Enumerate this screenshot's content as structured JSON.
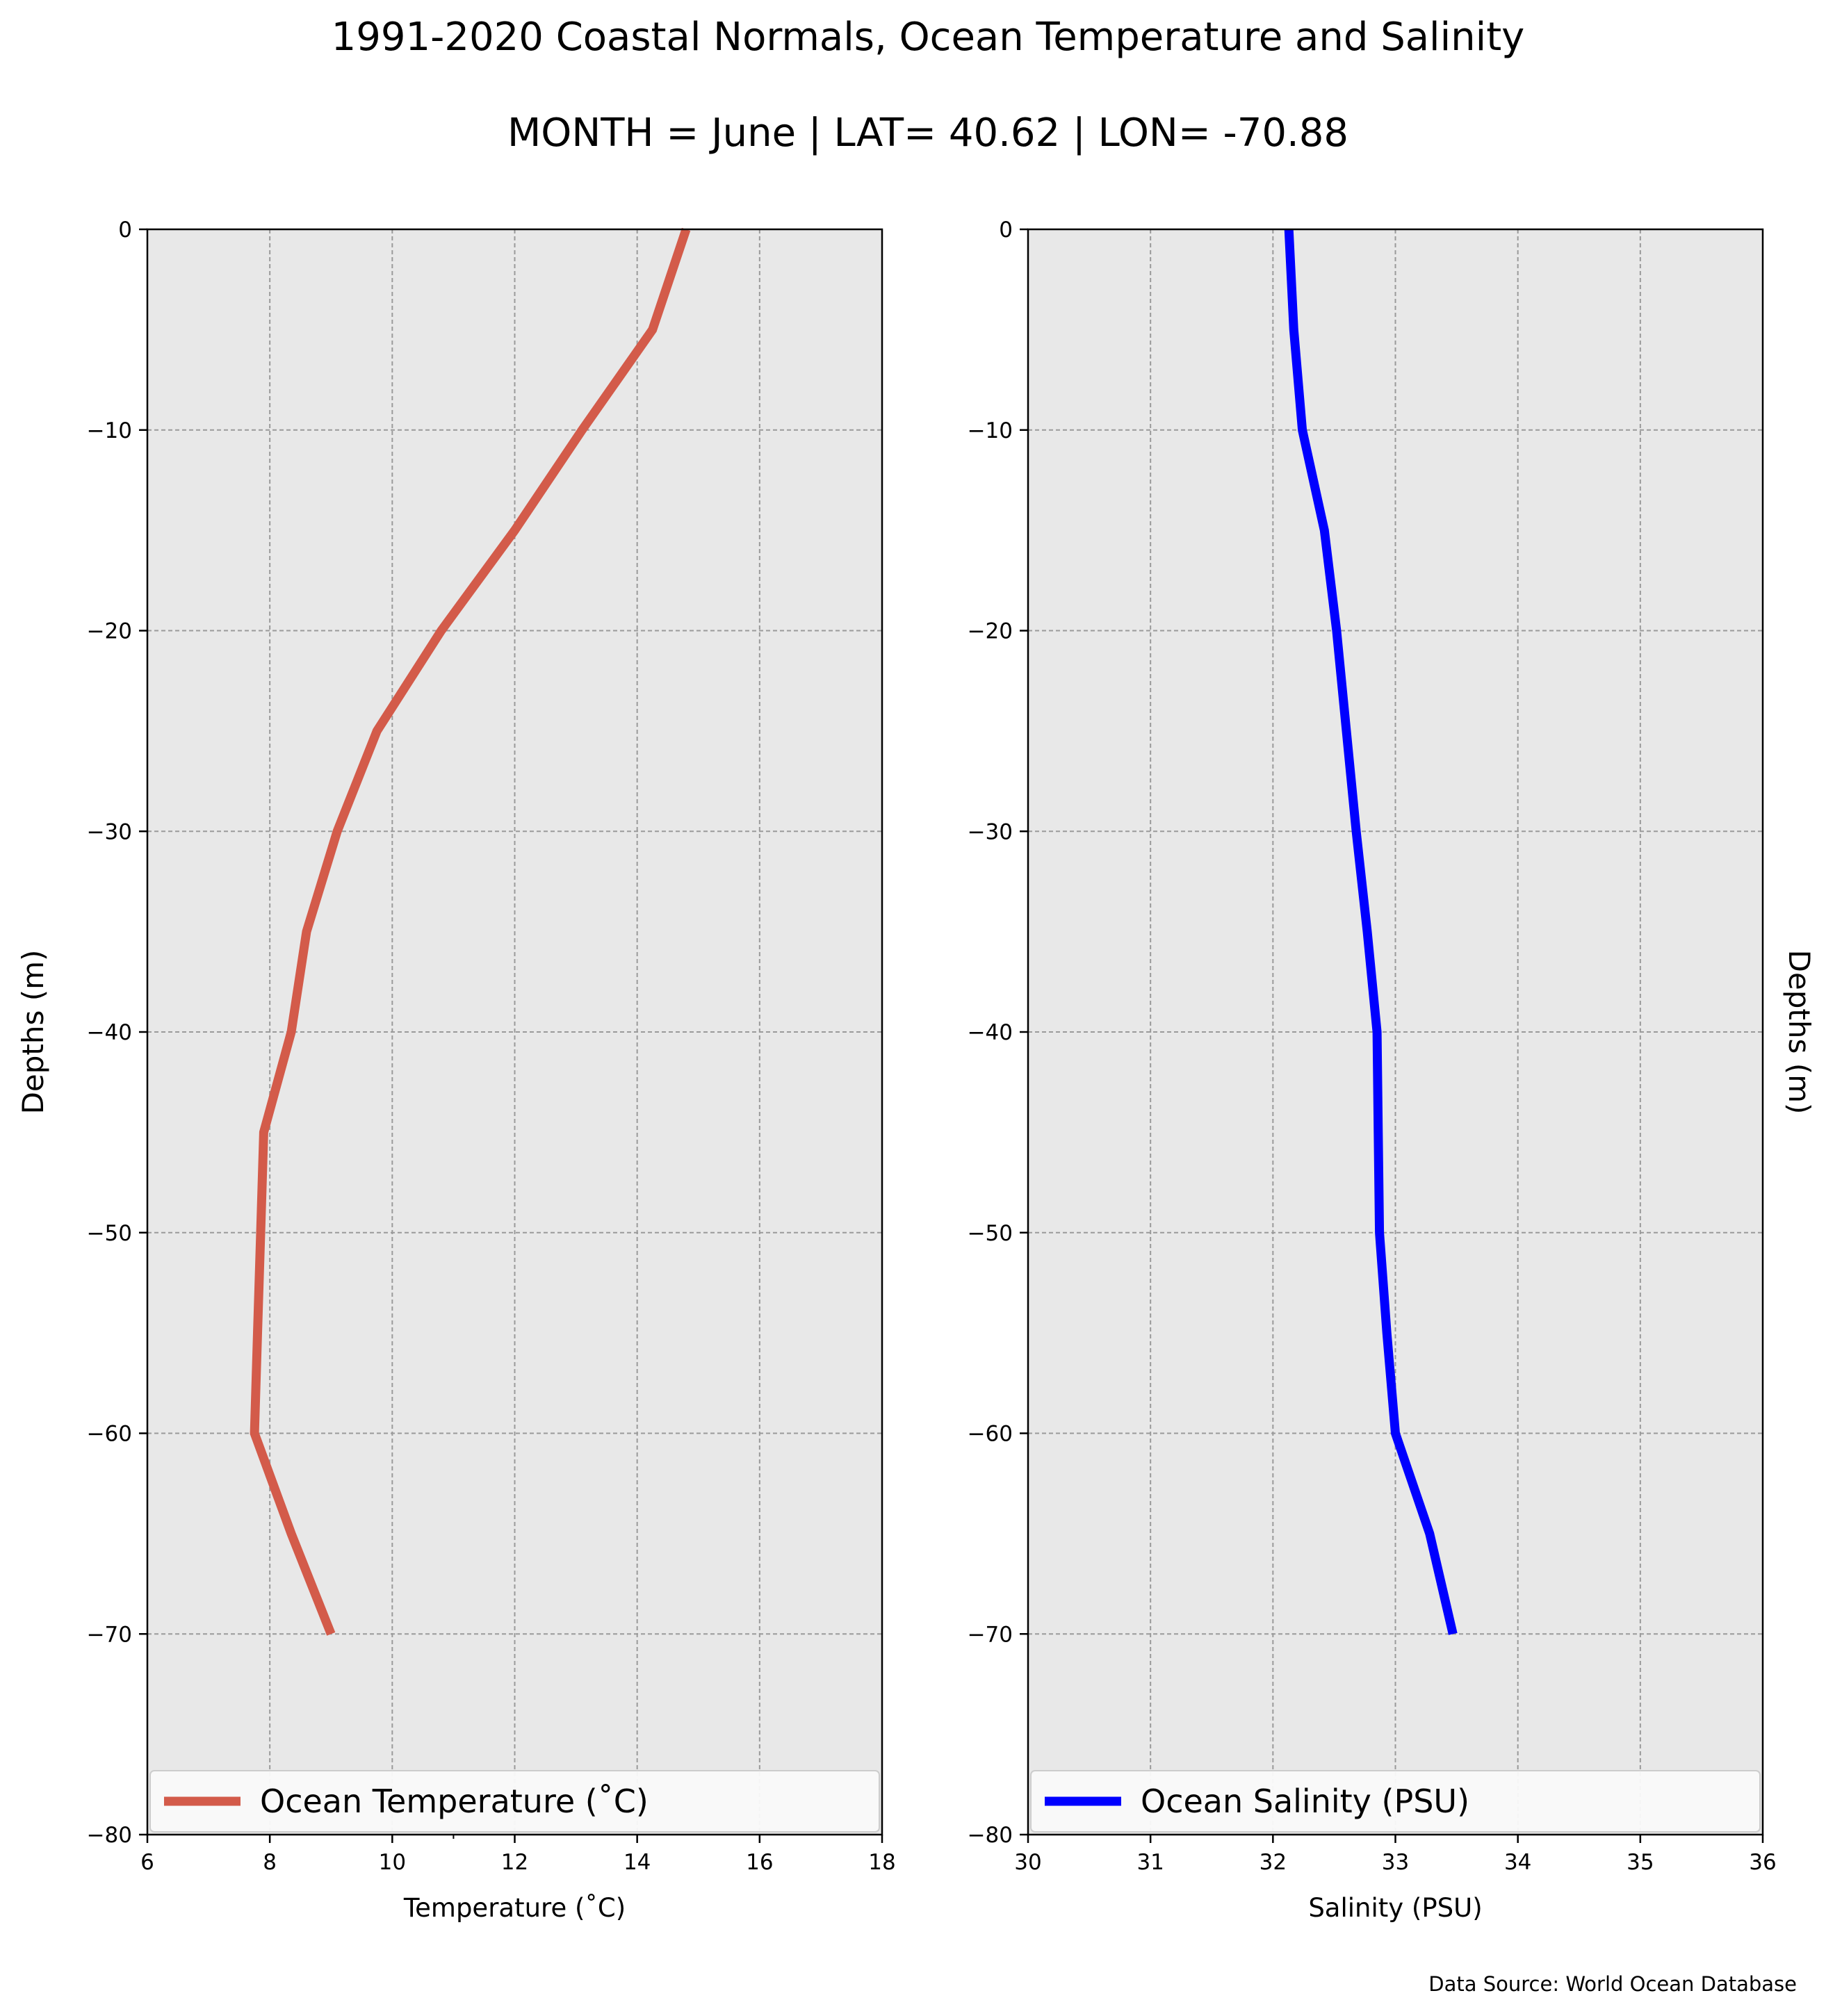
{
  "figure": {
    "title": "1991-2020 Coastal Normals, Ocean Temperature and Salinity",
    "subtitle": "MONTH = June | LAT= 40.62 | LON= -70.88",
    "source_note": "Data Source: World Ocean Database",
    "background": "#e8e8e8",
    "grid_color": "#9a9a9a"
  },
  "chart_data": [
    {
      "type": "line",
      "orientation": "depth-profile",
      "series": [
        {
          "name": "Ocean Temperature ($^\\circ$C)",
          "legend_label": "Ocean Temperature (˚C)",
          "color": "#d35b4a",
          "x": [
            14.8,
            14.25,
            13.1,
            12.0,
            10.8,
            9.75,
            9.1,
            8.6,
            8.35,
            7.9,
            7.85,
            7.8,
            7.75,
            8.35,
            9.0
          ],
          "y": [
            0,
            -5,
            -10,
            -15,
            -20,
            -25,
            -30,
            -35,
            -40,
            -45,
            -50,
            -55,
            -60,
            -65,
            -70
          ]
        }
      ],
      "xlabel": "Temperature (˚C)",
      "ylabel": "Depths (m)",
      "xlim": [
        6,
        18
      ],
      "ylim": [
        -80,
        0
      ],
      "xticks": [
        6,
        8,
        10,
        12,
        14,
        16,
        18
      ],
      "yticks": [
        0,
        -10,
        -20,
        -30,
        -40,
        -50,
        -60,
        -70,
        -80
      ],
      "ytick_labels": [
        "0",
        "−10",
        "−20",
        "−30",
        "−40",
        "−50",
        "−60",
        "−70",
        "−80"
      ],
      "grid": true,
      "legend_position": "bottom"
    },
    {
      "type": "line",
      "orientation": "depth-profile",
      "series": [
        {
          "name": "Ocean Salinity (PSU)",
          "legend_label": "Ocean Salinity (PSU)",
          "color": "#0000ff",
          "x": [
            32.13,
            32.17,
            32.24,
            32.42,
            32.52,
            32.6,
            32.68,
            32.77,
            32.85,
            32.86,
            32.87,
            32.93,
            33.0,
            33.28,
            33.47
          ],
          "y": [
            0,
            -5,
            -10,
            -15,
            -20,
            -25,
            -30,
            -35,
            -40,
            -45,
            -50,
            -55,
            -60,
            -65,
            -70
          ]
        }
      ],
      "xlabel": "Salinity (PSU)",
      "ylabel": "Depths (m)",
      "xlim": [
        30,
        36
      ],
      "ylim": [
        -80,
        0
      ],
      "xticks": [
        30,
        31,
        32,
        33,
        34,
        35,
        36
      ],
      "yticks": [
        0,
        -10,
        -20,
        -30,
        -40,
        -50,
        -60,
        -70,
        -80
      ],
      "ytick_labels": [
        "0",
        "−10",
        "−20",
        "−30",
        "−40",
        "−50",
        "−60",
        "−70",
        "−80"
      ],
      "grid": true,
      "legend_position": "bottom"
    }
  ]
}
